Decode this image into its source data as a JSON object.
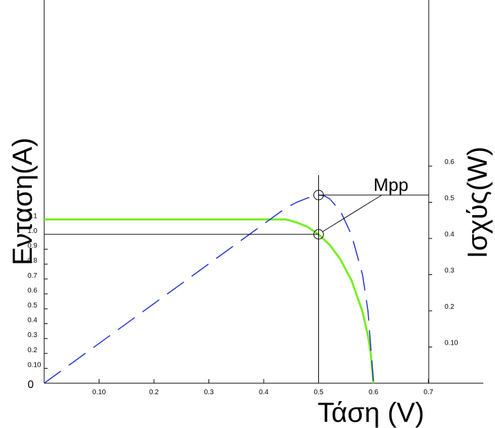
{
  "chart_data": {
    "type": "line",
    "xlabel": "Τάση (V)",
    "ylabel_left": "Ενταση(A)",
    "ylabel_right": "Ισχύς(W)",
    "origin_label": "0",
    "x_ticks": [
      "0.10",
      "0.2",
      "0.3",
      "0.4",
      "0.5",
      "0.6",
      "0.7"
    ],
    "x_tick_values": [
      0.1,
      0.2,
      0.3,
      0.4,
      0.5,
      0.6,
      0.7
    ],
    "xlim": [
      0,
      0.8
    ],
    "y_left_ticks": [
      "0.10",
      "0.2",
      "0.3",
      "0.4",
      "0.5",
      "0.6",
      "0.7",
      "0.8",
      "0.9",
      "1.0",
      "1.1"
    ],
    "y_left_tick_values": [
      0.1,
      0.2,
      0.3,
      0.4,
      0.5,
      0.6,
      0.7,
      0.8,
      0.9,
      1.0,
      1.1
    ],
    "y_right_ticks": [
      "0.10",
      "0.2",
      "0.3",
      "0.4",
      "0.5",
      "0.6"
    ],
    "y_right_tick_values": [
      0.1,
      0.2,
      0.3,
      0.4,
      0.5,
      0.6
    ],
    "annotation": "Mpp",
    "colors": {
      "current": "#77ee22",
      "power": "#1f2fd0",
      "axes": "#000000"
    },
    "series": [
      {
        "key": "current",
        "axis": "left",
        "style": "solid",
        "x": [
          0.0,
          0.1,
          0.2,
          0.3,
          0.4,
          0.44,
          0.46,
          0.48,
          0.5,
          0.52,
          0.54,
          0.56,
          0.58,
          0.59,
          0.595,
          0.6
        ],
        "y": [
          1.1,
          1.1,
          1.1,
          1.1,
          1.1,
          1.1,
          1.08,
          1.05,
          1.0,
          0.93,
          0.83,
          0.69,
          0.48,
          0.32,
          0.2,
          0.0
        ]
      },
      {
        "key": "power",
        "axis": "right",
        "style": "dashed",
        "x": [
          0.0,
          0.1,
          0.2,
          0.3,
          0.4,
          0.44,
          0.46,
          0.48,
          0.5,
          0.51,
          0.52,
          0.54,
          0.56,
          0.58,
          0.59,
          0.6
        ],
        "y": [
          0.0,
          0.11,
          0.22,
          0.33,
          0.44,
          0.484,
          0.5,
          0.512,
          0.52,
          0.518,
          0.51,
          0.475,
          0.41,
          0.3,
          0.2,
          0.0
        ]
      }
    ],
    "mpp": {
      "x": 0.5,
      "current": 1.0,
      "power": 0.52
    }
  }
}
